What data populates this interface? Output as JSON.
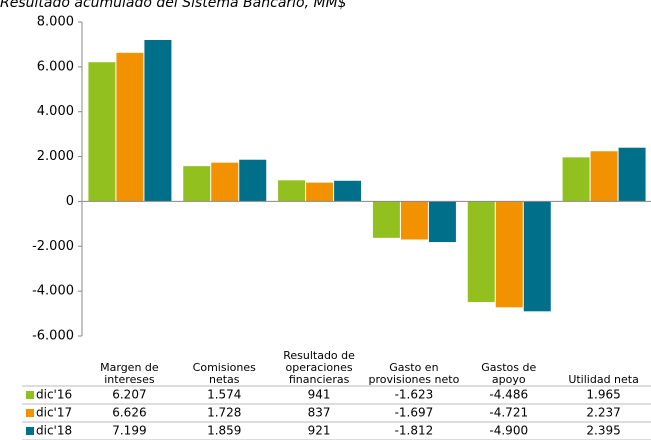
{
  "chart_data": {
    "type": "bar",
    "title": "Resultado acumulado del Sistema Bancario, MM$",
    "categories": [
      "Margen de intereses",
      "Comisiones netas",
      "Resultado de operaciones financieras",
      "Gasto en provisiones neto",
      "Gastos de apoyo",
      "Utilidad neta"
    ],
    "series": [
      {
        "name": "dic'16",
        "color": "#92c01f",
        "values": [
          6207,
          1574,
          941,
          -1623,
          -4486,
          1965
        ],
        "value_labels": [
          "6.207",
          "1.574",
          "941",
          "-1.623",
          "-4.486",
          "1.965"
        ]
      },
      {
        "name": "dic'17",
        "color": "#f39200",
        "values": [
          6626,
          1728,
          837,
          -1697,
          -4721,
          2237
        ],
        "value_labels": [
          "6.626",
          "1.728",
          "837",
          "-1.697",
          "-4.721",
          "2.237"
        ]
      },
      {
        "name": "dic'18",
        "color": "#006f8a",
        "values": [
          7199,
          1859,
          921,
          -1812,
          -4900,
          2395
        ],
        "value_labels": [
          "7.199",
          "1.859",
          "921",
          "-1.812",
          "-4.900",
          "2.395"
        ]
      }
    ],
    "ylim": [
      -6000,
      8000
    ],
    "yticks": [
      {
        "value": -6000,
        "label": "-6.000"
      },
      {
        "value": -4000,
        "label": "-4.000"
      },
      {
        "value": -2000,
        "label": "-2.000"
      },
      0,
      {
        "value": 2000,
        "label": "2.000"
      },
      {
        "value": 4000,
        "label": "4.000"
      },
      {
        "value": 6000,
        "label": "6.000"
      },
      {
        "value": 8000,
        "label": "8.000"
      }
    ]
  }
}
